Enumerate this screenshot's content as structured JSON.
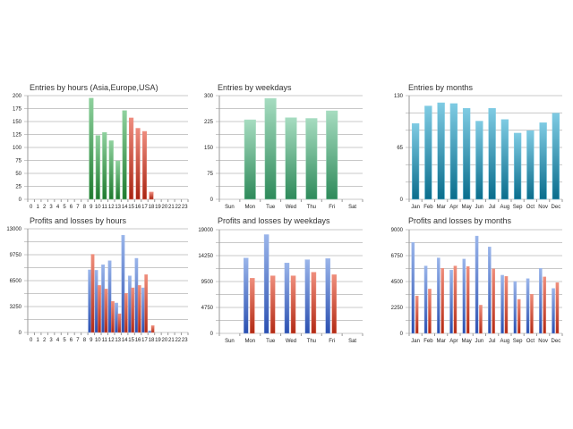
{
  "colors": {
    "green_light": "#8fd19e",
    "green_dark": "#1e7a2e",
    "red_light": "#ee8c7e",
    "red_dark": "#a82412",
    "mint_light": "#a6dcc0",
    "mint_dark": "#2e8a5a",
    "teal_light": "#7fcbe3",
    "teal_dark": "#0a6d8c",
    "blue_light": "#9ab5ea",
    "blue_dark": "#2a4fb0",
    "loss_light": "#ef8e7c",
    "loss_dark": "#b22a14"
  },
  "chart_data": [
    {
      "id": "entries-by-hours",
      "type": "bar",
      "title": "Entries by hours (Asia,Europe,USA)",
      "xlabel": "",
      "ylabel": "",
      "categories": [
        "0",
        "1",
        "2",
        "3",
        "4",
        "5",
        "6",
        "7",
        "8",
        "9",
        "10",
        "11",
        "12",
        "13",
        "14",
        "15",
        "16",
        "17",
        "18",
        "19",
        "20",
        "21",
        "22",
        "23"
      ],
      "series": [
        {
          "name": "Asia/Europe",
          "color_key": "green",
          "values": [
            0,
            0,
            0,
            0,
            0,
            0,
            0,
            0,
            0,
            195,
            123,
            129,
            113,
            74,
            171,
            0,
            0,
            0,
            0,
            0,
            0,
            0,
            0,
            0
          ]
        },
        {
          "name": "USA",
          "color_key": "red",
          "values": [
            0,
            0,
            0,
            0,
            0,
            0,
            0,
            0,
            0,
            0,
            0,
            0,
            0,
            0,
            0,
            157,
            137,
            131,
            14,
            0,
            0,
            0,
            0,
            0
          ]
        }
      ],
      "stacked": true,
      "ylim": [
        0,
        200
      ],
      "yticks": [
        0,
        25,
        50,
        75,
        100,
        125,
        150,
        175,
        200
      ],
      "ytick_labels": [
        "0",
        "25",
        "50",
        "75",
        "100",
        "125",
        "150",
        "175",
        "200"
      ],
      "grid": true,
      "legend": "none"
    },
    {
      "id": "entries-by-weekdays",
      "type": "bar",
      "title": "Entries by weekdays",
      "xlabel": "",
      "ylabel": "",
      "categories": [
        "Sun",
        "Mon",
        "Tue",
        "Wed",
        "Thu",
        "Fri",
        "Sat"
      ],
      "series": [
        {
          "name": "Entries",
          "color_key": "mint",
          "values": [
            0,
            230,
            292,
            236,
            234,
            256,
            0
          ]
        }
      ],
      "ylim": [
        0,
        300
      ],
      "yticks": [
        0,
        75,
        150,
        225,
        300
      ],
      "ytick_labels": [
        "0",
        "75",
        "150",
        "225",
        "300"
      ],
      "grid": true,
      "legend": "none"
    },
    {
      "id": "entries-by-months",
      "type": "bar",
      "title": "Entries by months",
      "xlabel": "",
      "ylabel": "",
      "categories": [
        "Jan",
        "Feb",
        "Mar",
        "Apr",
        "May",
        "Jun",
        "Jul",
        "Aug",
        "Sep",
        "Oct",
        "Nov",
        "Dec"
      ],
      "series": [
        {
          "name": "Entries",
          "color_key": "teal",
          "values": [
            95,
            117,
            121,
            120,
            114,
            98,
            114,
            100,
            83,
            86,
            96,
            108
          ]
        }
      ],
      "ylim": [
        0,
        130
      ],
      "yticks": [
        0,
        65,
        130
      ],
      "ytick_labels": [
        "0",
        "65",
        "130"
      ],
      "grid_steps": 6,
      "grid": true,
      "legend": "none"
    },
    {
      "id": "profits-losses-by-hours",
      "type": "bar",
      "title": "Profits and losses by hours",
      "xlabel": "",
      "ylabel": "",
      "categories": [
        "0",
        "1",
        "2",
        "3",
        "4",
        "5",
        "6",
        "7",
        "8",
        "9",
        "10",
        "11",
        "12",
        "13",
        "14",
        "15",
        "16",
        "17",
        "18",
        "19",
        "20",
        "21",
        "22",
        "23"
      ],
      "series": [
        {
          "name": "Profits",
          "color_key": "blue",
          "values": [
            0,
            0,
            0,
            0,
            0,
            0,
            0,
            0,
            0,
            7850,
            7800,
            8500,
            9000,
            3700,
            12200,
            7100,
            9300,
            5600,
            220,
            0,
            0,
            0,
            0,
            0
          ]
        },
        {
          "name": "Losses",
          "color_key": "loss",
          "values": [
            0,
            0,
            0,
            0,
            0,
            0,
            0,
            0,
            0,
            9800,
            5900,
            5450,
            3900,
            2350,
            4900,
            5600,
            5900,
            7250,
            860,
            0,
            0,
            0,
            0,
            0
          ]
        }
      ],
      "ylim": [
        0,
        13000
      ],
      "yticks": [
        0,
        3250,
        6500,
        9750,
        13000
      ],
      "ytick_labels": [
        "0",
        "3250",
        "6500",
        "9750",
        "13000"
      ],
      "grid": true,
      "legend": "none"
    },
    {
      "id": "profits-losses-by-weekdays",
      "type": "bar",
      "title": "Profits and losses by weekdays",
      "xlabel": "",
      "ylabel": "",
      "categories": [
        "Sun",
        "Mon",
        "Tue",
        "Wed",
        "Thu",
        "Fri",
        "Sat"
      ],
      "series": [
        {
          "name": "Profits",
          "color_key": "blue",
          "values": [
            0,
            13800,
            18100,
            12900,
            13500,
            13700,
            0
          ]
        },
        {
          "name": "Losses",
          "color_key": "loss",
          "values": [
            0,
            10100,
            10550,
            10550,
            11200,
            10750,
            0
          ]
        }
      ],
      "ylim": [
        0,
        19000
      ],
      "yticks": [
        0,
        4750,
        9500,
        14250,
        19000
      ],
      "ytick_labels": [
        "0",
        "4750",
        "9500",
        "14250",
        "19000"
      ],
      "grid": true,
      "legend": "none"
    },
    {
      "id": "profits-losses-by-months",
      "type": "bar",
      "title": "Profits and losses by months",
      "xlabel": "",
      "ylabel": "",
      "categories": [
        "Jan",
        "Feb",
        "Mar",
        "Apr",
        "May",
        "Jun",
        "Jul",
        "Aug",
        "Sep",
        "Oct",
        "Nov",
        "Dec"
      ],
      "series": [
        {
          "name": "Profits",
          "color_key": "blue",
          "values": [
            7900,
            5850,
            6550,
            5500,
            6450,
            8450,
            7500,
            5050,
            4500,
            4750,
            5650,
            3900
          ]
        },
        {
          "name": "Losses",
          "color_key": "loss",
          "values": [
            3250,
            3850,
            5650,
            5850,
            5800,
            2450,
            5600,
            4950,
            2950,
            3400,
            4900,
            4400
          ]
        }
      ],
      "ylim": [
        0,
        9000
      ],
      "yticks": [
        0,
        2250,
        4500,
        6750,
        9000
      ],
      "ytick_labels": [
        "0",
        "2250",
        "4500",
        "6750",
        "9000"
      ],
      "grid": true,
      "legend": "none"
    }
  ]
}
